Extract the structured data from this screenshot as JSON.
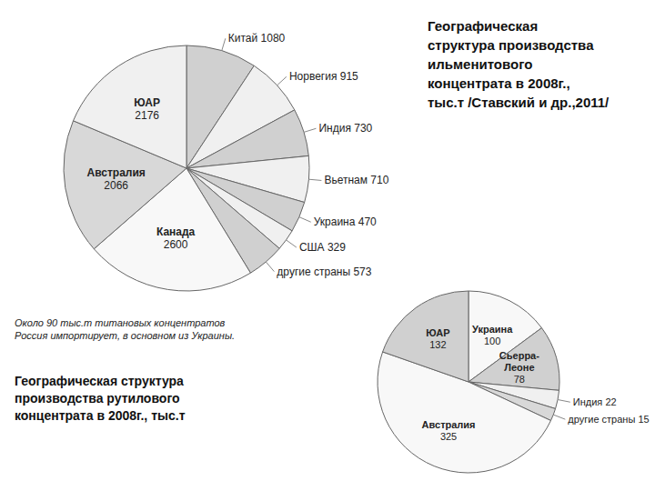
{
  "chart_data": [
    {
      "type": "pie",
      "title": "Географическая\nструктура производства\nильменитового\nконцентрата в 2008г.,\nтыс.т /Ставский и др.,2011/",
      "categories": [
        "Китай",
        "Норвегия",
        "Индия",
        "Вьетнам",
        "Украина",
        "США",
        "другие страны",
        "Канада",
        "Австралия",
        "ЮАР"
      ],
      "values": [
        1080,
        915,
        730,
        710,
        470,
        329,
        573,
        2600,
        2066,
        2176
      ],
      "colors": [
        "#d0d0d0",
        "#f0f0f0",
        "#d0d0d0",
        "#f0f0f0",
        "#d0d0d0",
        "#f0f0f0",
        "#d0d0d0",
        "#f8f8f8",
        "#d8d8d8",
        "#f0f0f0"
      ],
      "data_labels": true,
      "annotations": [
        "Около 90 тыс.т титановых концентратов\nРоссия импортирует, в основном из Украины."
      ]
    },
    {
      "type": "pie",
      "title": "Географическая структура\nпроизводства рутилового\nконцентрата в 2008г., тыс.т",
      "categories": [
        "Украина",
        "Сьерра-\nЛеоне",
        "Индия",
        "другие страны",
        "Австралия",
        "ЮАР"
      ],
      "values": [
        100,
        78,
        22,
        15,
        325,
        132
      ],
      "colors": [
        "#f8f8f8",
        "#d0d0d0",
        "#f0f0f0",
        "#d8d8d8",
        "#f8f8f8",
        "#d0d0d0"
      ],
      "data_labels": true
    }
  ]
}
